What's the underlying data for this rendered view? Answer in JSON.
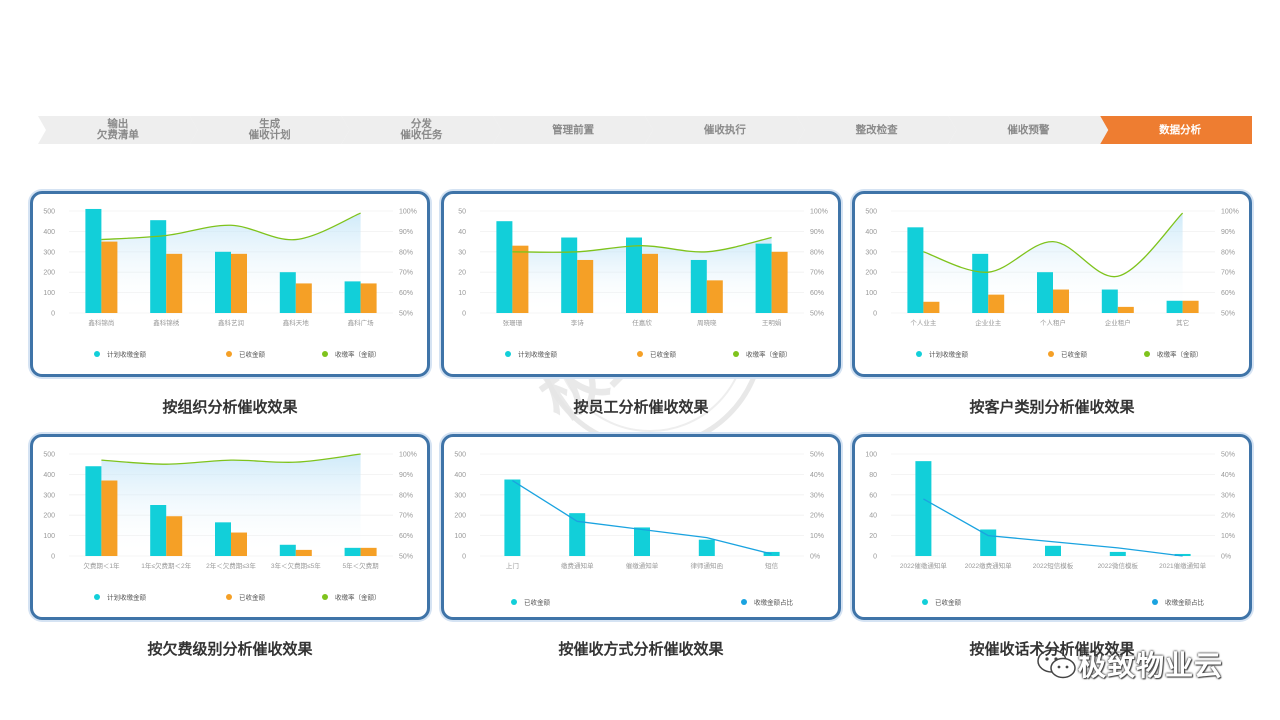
{
  "steps": [
    {
      "label": "输出\n欠费清单",
      "active": false
    },
    {
      "label": "生成\n催收计划",
      "active": false
    },
    {
      "label": "分发\n催收任务",
      "active": false
    },
    {
      "label": "管理前置",
      "active": false
    },
    {
      "label": "催收执行",
      "active": false
    },
    {
      "label": "整改检查",
      "active": false
    },
    {
      "label": "催收预警",
      "active": false
    },
    {
      "label": "数据分析",
      "active": true
    }
  ],
  "colors": {
    "planned": "#12cfd9",
    "collected": "#f5a026",
    "rate": "#7fc31c",
    "share": "#1aa3e0",
    "step_active": "#ee7d31",
    "step_inactive": "#eeeeee"
  },
  "watermark": "极致科技",
  "brand": "极致物业云",
  "chart_data": [
    {
      "type": "bar",
      "caption": "按组织分析催收效果",
      "categories": [
        "鑫科锦尚",
        "鑫科锦绣",
        "鑫科艺润",
        "鑫科天地",
        "鑫科广场"
      ],
      "series": [
        {
          "name": "计划收缴金额",
          "values": [
            510,
            455,
            300,
            200,
            155
          ]
        },
        {
          "name": "已收金额",
          "values": [
            350,
            290,
            290,
            145,
            145
          ]
        }
      ],
      "line": {
        "name": "收缴率（金额）",
        "values": [
          86,
          88,
          93,
          86,
          99
        ]
      },
      "ylim": [
        0,
        500
      ],
      "yticks": [
        "0",
        "100",
        "200",
        "300",
        "400",
        "500"
      ],
      "y2ticks": [
        "50%",
        "60%",
        "70%",
        "80%",
        "90%",
        "100%"
      ],
      "y2lim": [
        50,
        100
      ]
    },
    {
      "type": "bar",
      "caption": "按员工分析催收效果",
      "categories": [
        "张珊珊",
        "李诗",
        "任嘉欣",
        "周晓晓",
        "王明娟"
      ],
      "series": [
        {
          "name": "计划收缴金额",
          "values": [
            45,
            37,
            37,
            26,
            34
          ]
        },
        {
          "name": "已收金额",
          "values": [
            33,
            26,
            29,
            16,
            30
          ]
        }
      ],
      "line": {
        "name": "收缴率（金额）",
        "values": [
          80,
          80,
          83,
          80,
          87
        ]
      },
      "ylim": [
        0,
        50
      ],
      "yticks": [
        "0",
        "10",
        "20",
        "30",
        "40",
        "50"
      ],
      "y2ticks": [
        "50%",
        "60%",
        "70%",
        "80%",
        "90%",
        "100%"
      ],
      "y2lim": [
        50,
        100
      ]
    },
    {
      "type": "bar",
      "caption": "按客户类别分析催收效果",
      "categories": [
        "个人业主",
        "企业业主",
        "个人租户",
        "企业租户",
        "其它"
      ],
      "series": [
        {
          "name": "计划收缴金额",
          "values": [
            420,
            290,
            200,
            115,
            60
          ]
        },
        {
          "name": "已收金额",
          "values": [
            55,
            90,
            115,
            30,
            60
          ]
        }
      ],
      "line": {
        "name": "收缴率（金额）",
        "values": [
          80,
          70,
          85,
          68,
          99
        ]
      },
      "ylim": [
        0,
        500
      ],
      "yticks": [
        "0",
        "100",
        "200",
        "300",
        "400",
        "500"
      ],
      "y2ticks": [
        "50%",
        "60%",
        "70%",
        "80%",
        "90%",
        "100%"
      ],
      "y2lim": [
        50,
        100
      ]
    },
    {
      "type": "bar",
      "caption": "按欠费级别分析催收效果",
      "categories": [
        "欠费期＜1年",
        "1年≤欠费期＜2年",
        "2年＜欠费期≤3年",
        "3年＜欠费期≤5年",
        "5年＜欠费期"
      ],
      "series": [
        {
          "name": "计划收缴金额",
          "values": [
            440,
            250,
            165,
            55,
            40
          ]
        },
        {
          "name": "已收金额",
          "values": [
            370,
            195,
            115,
            30,
            40
          ]
        }
      ],
      "line": {
        "name": "收缴率（金额）",
        "values": [
          97,
          95,
          97,
          96,
          100
        ]
      },
      "ylim": [
        0,
        500
      ],
      "yticks": [
        "0",
        "100",
        "200",
        "300",
        "400",
        "500"
      ],
      "y2ticks": [
        "50%",
        "60%",
        "70%",
        "80%",
        "90%",
        "100%"
      ],
      "y2lim": [
        50,
        100
      ]
    },
    {
      "type": "bar",
      "caption": "按催收方式分析催收效果",
      "categories": [
        "上门",
        "缴费通知单",
        "催缴通知单",
        "律师通知函",
        "短信"
      ],
      "series": [
        {
          "name": "已收金额",
          "values": [
            375,
            210,
            140,
            80,
            20
          ]
        }
      ],
      "line": {
        "name": "收缴金额占比",
        "values": [
          37,
          17,
          13,
          9,
          1
        ]
      },
      "ylim": [
        0,
        500
      ],
      "yticks": [
        "0",
        "100",
        "200",
        "300",
        "400",
        "500"
      ],
      "y2ticks": [
        "0%",
        "10%",
        "20%",
        "30%",
        "40%",
        "50%"
      ],
      "y2lim": [
        0,
        50
      ]
    },
    {
      "type": "bar",
      "caption": "按催收话术分析催收效果",
      "categories": [
        "2022催缴通知单",
        "2022缴费通知单",
        "2022短信模板",
        "2022微信模板",
        "2021催缴通知单"
      ],
      "series": [
        {
          "name": "已收金额",
          "values": [
            93,
            26,
            10,
            4,
            2
          ]
        }
      ],
      "line": {
        "name": "收缴金额占比",
        "values": [
          28,
          10,
          7,
          4,
          0
        ]
      },
      "ylim": [
        0,
        100
      ],
      "yticks": [
        "0",
        "20",
        "40",
        "60",
        "80",
        "100"
      ],
      "y2ticks": [
        "0%",
        "10%",
        "20%",
        "30%",
        "40%",
        "50%"
      ],
      "y2lim": [
        0,
        50
      ]
    }
  ]
}
